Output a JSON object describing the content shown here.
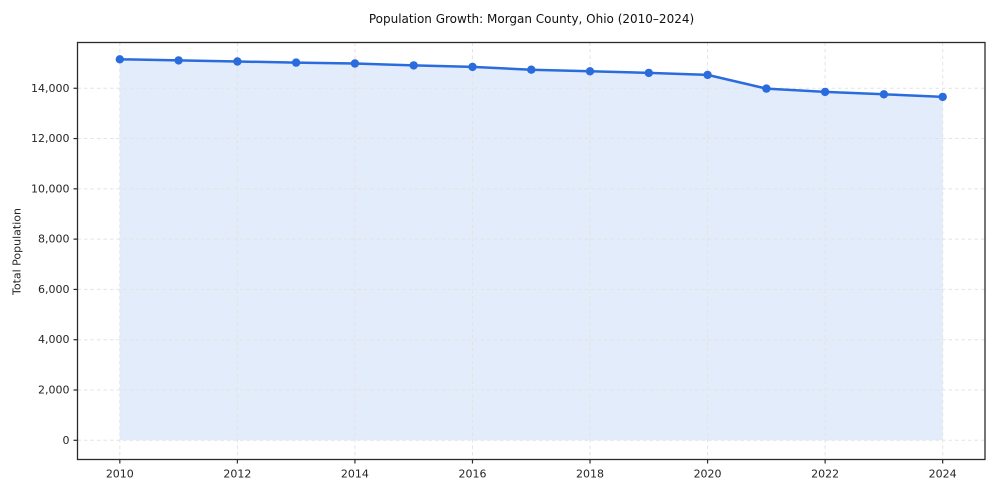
{
  "page": {
    "background": "#ffffff"
  },
  "chart_data": {
    "type": "area",
    "title": "Population Growth: Morgan County, Ohio (2010–2024)",
    "xlabel": "",
    "ylabel": "Total Population",
    "x": [
      2010,
      2011,
      2012,
      2013,
      2014,
      2015,
      2016,
      2017,
      2018,
      2019,
      2020,
      2021,
      2022,
      2023,
      2024
    ],
    "series": [
      {
        "name": "Total Population",
        "values": [
          15150,
          15110,
          15065,
          15020,
          14985,
          14910,
          14850,
          14740,
          14675,
          14610,
          14530,
          13985,
          13855,
          13760,
          13655
        ]
      }
    ],
    "xticks": [
      2010,
      2012,
      2014,
      2016,
      2018,
      2020,
      2022,
      2024
    ],
    "xtick_labels": [
      "2010",
      "2012",
      "2014",
      "2016",
      "2018",
      "2020",
      "2022",
      "2024"
    ],
    "yticks": [
      0,
      2000,
      4000,
      6000,
      8000,
      10000,
      12000,
      14000
    ],
    "ytick_labels": [
      "0",
      "2,000",
      "4,000",
      "6,000",
      "8,000",
      "10,000",
      "12,000",
      "14,000"
    ],
    "xlim": [
      2009.28,
      2024.72
    ],
    "ylim": [
      -764,
      15820
    ],
    "grid": true,
    "grid_style": "dashed",
    "legend": "none",
    "fill_baseline": 0,
    "colors": {
      "line": "#2a6cdd",
      "marker": "#2a6cdd",
      "fill": "#2a6cdd",
      "fill_opacity": 0.13,
      "grid": "#e3e3e3",
      "spine": "#2b2b2b",
      "text": "#262626",
      "title": "#111111"
    }
  }
}
